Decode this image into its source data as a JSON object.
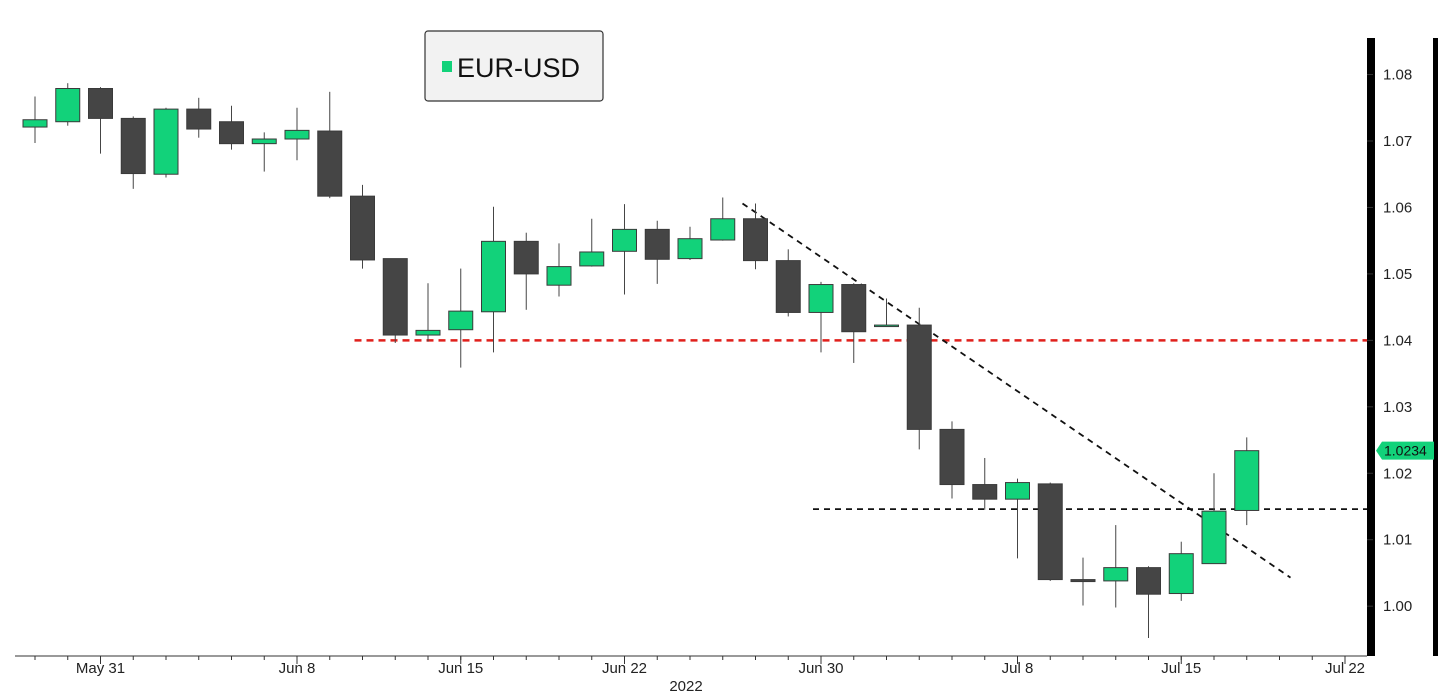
{
  "chart_data": {
    "type": "candlestick",
    "title": "",
    "legend": {
      "label": "EUR-USD",
      "placement": "top-left",
      "color": "#12d27a"
    },
    "colors": {
      "up": "#12d27a",
      "down": "#454545",
      "wick": "#454545"
    },
    "y_axis": {
      "position": "right",
      "range": [
        0.9925,
        1.0855
      ],
      "ticks": [
        "1.00",
        "1.01",
        "1.02",
        "1.03",
        "1.04",
        "1.05",
        "1.06",
        "1.07",
        "1.08"
      ]
    },
    "x_axis": {
      "ticks": [
        {
          "label": "May 31",
          "date": "2022-05-31"
        },
        {
          "label": "Jun 8",
          "date": "2022-06-08"
        },
        {
          "label": "Jun 15",
          "date": "2022-06-15"
        },
        {
          "label": "Jun 22",
          "date": "2022-06-22"
        },
        {
          "label": "Jun 30",
          "date": "2022-06-30"
        },
        {
          "label": "Jul 8",
          "date": "2022-07-08"
        },
        {
          "label": "Jul 15",
          "date": "2022-07-15"
        },
        {
          "label": "Jul 22",
          "date": "2022-07-22"
        }
      ],
      "year_label": "2022"
    },
    "last_price": {
      "label": "1.0234",
      "value": 1.0234
    },
    "candles": [
      {
        "date": "2022-05-27",
        "open": 1.0721,
        "high": 1.0767,
        "low": 1.0697,
        "close": 1.0732
      },
      {
        "date": "2022-05-30",
        "open": 1.0729,
        "high": 1.0787,
        "low": 1.0723,
        "close": 1.0779
      },
      {
        "date": "2022-05-31",
        "open": 1.0779,
        "high": 1.0781,
        "low": 1.0681,
        "close": 1.0734
      },
      {
        "date": "2022-06-01",
        "open": 1.0734,
        "high": 1.0737,
        "low": 1.0628,
        "close": 1.0651
      },
      {
        "date": "2022-06-02",
        "open": 1.065,
        "high": 1.075,
        "low": 1.0645,
        "close": 1.0748
      },
      {
        "date": "2022-06-03",
        "open": 1.0748,
        "high": 1.0765,
        "low": 1.0705,
        "close": 1.0718
      },
      {
        "date": "2022-06-06",
        "open": 1.0729,
        "high": 1.0753,
        "low": 1.0687,
        "close": 1.0696
      },
      {
        "date": "2022-06-07",
        "open": 1.0696,
        "high": 1.0713,
        "low": 1.0654,
        "close": 1.0703
      },
      {
        "date": "2022-06-08",
        "open": 1.0703,
        "high": 1.075,
        "low": 1.0671,
        "close": 1.0716
      },
      {
        "date": "2022-06-09",
        "open": 1.0715,
        "high": 1.0774,
        "low": 1.0614,
        "close": 1.0617
      },
      {
        "date": "2022-06-10",
        "open": 1.0617,
        "high": 1.0634,
        "low": 1.0508,
        "close": 1.0521
      },
      {
        "date": "2022-06-13",
        "open": 1.0523,
        "high": 1.0523,
        "low": 1.0396,
        "close": 1.0408
      },
      {
        "date": "2022-06-14",
        "open": 1.0408,
        "high": 1.0486,
        "low": 1.0398,
        "close": 1.0415
      },
      {
        "date": "2022-06-15",
        "open": 1.0416,
        "high": 1.0508,
        "low": 1.0359,
        "close": 1.0444
      },
      {
        "date": "2022-06-16",
        "open": 1.0443,
        "high": 1.0601,
        "low": 1.0382,
        "close": 1.0549
      },
      {
        "date": "2022-06-17",
        "open": 1.0549,
        "high": 1.0562,
        "low": 1.0446,
        "close": 1.05
      },
      {
        "date": "2022-06-20",
        "open": 1.0483,
        "high": 1.0546,
        "low": 1.0466,
        "close": 1.0511
      },
      {
        "date": "2022-06-21",
        "open": 1.0512,
        "high": 1.0583,
        "low": 1.0511,
        "close": 1.0533
      },
      {
        "date": "2022-06-22",
        "open": 1.0534,
        "high": 1.0605,
        "low": 1.0469,
        "close": 1.0567
      },
      {
        "date": "2022-06-23",
        "open": 1.0567,
        "high": 1.058,
        "low": 1.0485,
        "close": 1.0522
      },
      {
        "date": "2022-06-24",
        "open": 1.0523,
        "high": 1.0571,
        "low": 1.0521,
        "close": 1.0553
      },
      {
        "date": "2022-06-27",
        "open": 1.0551,
        "high": 1.0615,
        "low": 1.055,
        "close": 1.0583
      },
      {
        "date": "2022-06-28",
        "open": 1.0583,
        "high": 1.0606,
        "low": 1.0507,
        "close": 1.052
      },
      {
        "date": "2022-06-29",
        "open": 1.052,
        "high": 1.0537,
        "low": 1.0436,
        "close": 1.0442
      },
      {
        "date": "2022-06-30",
        "open": 1.0442,
        "high": 1.0488,
        "low": 1.0382,
        "close": 1.0484
      },
      {
        "date": "2022-07-01",
        "open": 1.0484,
        "high": 1.0486,
        "low": 1.0366,
        "close": 1.0413
      },
      {
        "date": "2022-07-04",
        "open": 1.0421,
        "high": 1.0463,
        "low": 1.0421,
        "close": 1.0423
      },
      {
        "date": "2022-07-05",
        "open": 1.0423,
        "high": 1.0449,
        "low": 1.0236,
        "close": 1.0266
      },
      {
        "date": "2022-07-06",
        "open": 1.0266,
        "high": 1.0278,
        "low": 1.0162,
        "close": 1.0183
      },
      {
        "date": "2022-07-07",
        "open": 1.0183,
        "high": 1.0223,
        "low": 1.0145,
        "close": 1.0161
      },
      {
        "date": "2022-07-08",
        "open": 1.0161,
        "high": 1.0192,
        "low": 1.0072,
        "close": 1.0186
      },
      {
        "date": "2022-07-11",
        "open": 1.0184,
        "high": 1.0186,
        "low": 1.0038,
        "close": 1.004
      },
      {
        "date": "2022-07-12",
        "open": 1.004,
        "high": 1.0073,
        "low": 1.0001,
        "close": 1.0037
      },
      {
        "date": "2022-07-13",
        "open": 1.0038,
        "high": 1.0122,
        "low": 0.9998,
        "close": 1.0058
      },
      {
        "date": "2022-07-14",
        "open": 1.0058,
        "high": 1.006,
        "low": 0.9952,
        "close": 1.0018
      },
      {
        "date": "2022-07-15",
        "open": 1.0019,
        "high": 1.0097,
        "low": 1.0008,
        "close": 1.0079
      },
      {
        "date": "2022-07-18",
        "open": 1.0064,
        "high": 1.02,
        "low": 1.0064,
        "close": 1.0143
      },
      {
        "date": "2022-07-19",
        "open": 1.0144,
        "high": 1.0254,
        "low": 1.0122,
        "close": 1.0234
      }
    ],
    "annotations": [
      {
        "type": "horizontal-line",
        "style": "dashed",
        "color": "#e0201c",
        "value": 1.04,
        "from_date": "2022-06-10"
      },
      {
        "type": "horizontal-line",
        "style": "dashed",
        "color": "#111111",
        "value": 1.0146,
        "from_date": "2022-06-30"
      },
      {
        "type": "trend-line",
        "style": "dashed",
        "color": "#111111",
        "from": {
          "date": "2022-06-28",
          "value": 1.0606
        },
        "to": {
          "date": "2022-07-20",
          "value": 1.0043
        }
      }
    ]
  }
}
